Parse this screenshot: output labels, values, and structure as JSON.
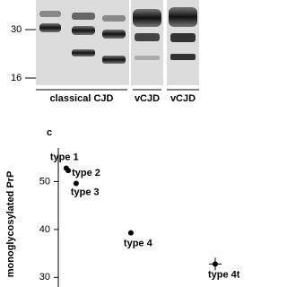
{
  "blot": {
    "markers": [
      "30",
      "16"
    ],
    "groups": [
      "classical CJD",
      "vCJD",
      "vCJD"
    ]
  },
  "chart_data": {
    "type": "scatter",
    "panel_label": "c",
    "ylabel": "monoglycosylated PrP",
    "ylim": [
      28,
      57
    ],
    "yticks": [
      30,
      40,
      50
    ],
    "xlim": [
      0,
      100
    ],
    "color": "#000000",
    "points": [
      {
        "label": "type 1",
        "x": 10.5,
        "y": 52.8
      },
      {
        "label": "type 2",
        "x": 11.3,
        "y": 52.3
      },
      {
        "label": "type 3",
        "x": 14.5,
        "y": 49.6
      },
      {
        "label": "type 4",
        "x": 36.7,
        "y": 39.3
      },
      {
        "label": "type 4t",
        "x": 70.9,
        "y": 32.8,
        "xerr": 2.5,
        "yerr": 1.3
      }
    ]
  }
}
